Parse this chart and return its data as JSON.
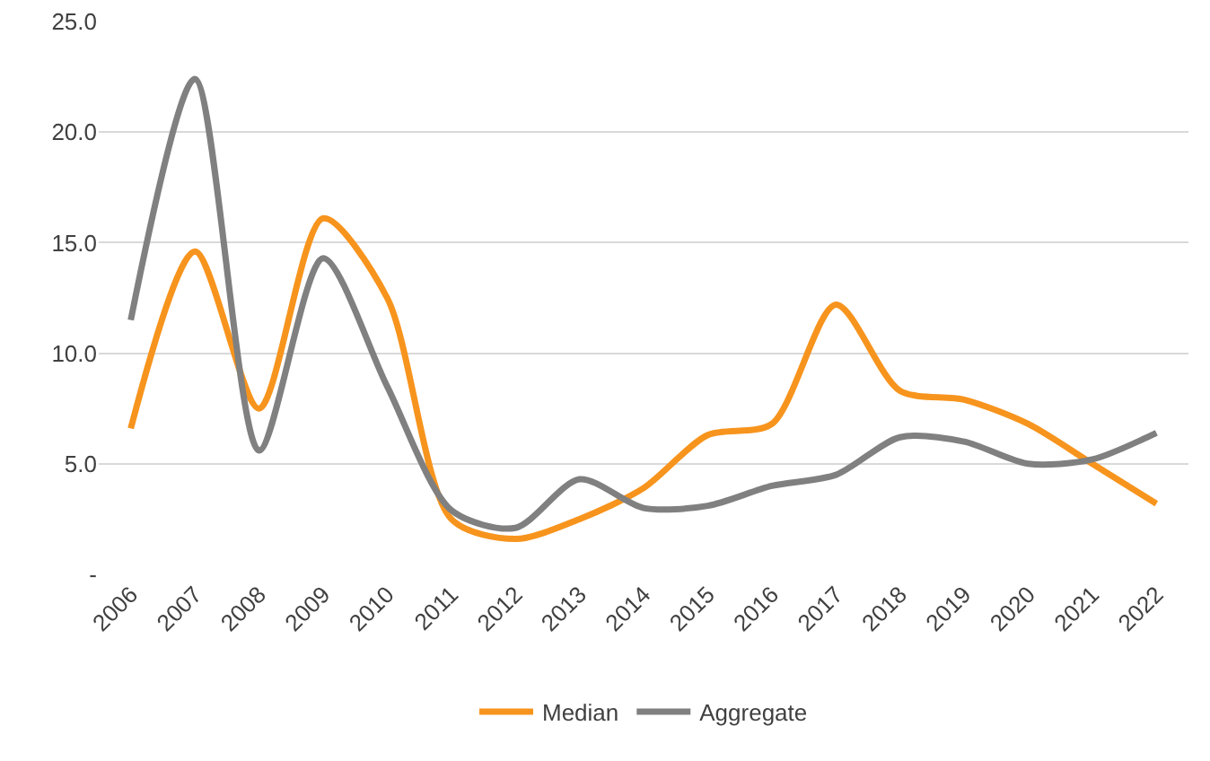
{
  "chart_data": {
    "type": "line",
    "categories": [
      "2006",
      "2007",
      "2008",
      "2009",
      "2010",
      "2011",
      "2012",
      "2013",
      "2014",
      "2015",
      "2016",
      "2017",
      "2018",
      "2019",
      "2020",
      "2021",
      "2022"
    ],
    "series": [
      {
        "name": "Median",
        "color": "#f7941d",
        "values": [
          6.6,
          14.6,
          7.5,
          16.1,
          12.5,
          2.5,
          1.6,
          2.5,
          3.9,
          6.3,
          6.8,
          12.2,
          8.3,
          7.9,
          6.8,
          5.0,
          3.2
        ]
      },
      {
        "name": "Aggregate",
        "color": "#808080",
        "values": [
          11.5,
          22.4,
          5.6,
          14.3,
          8.5,
          2.9,
          2.1,
          4.3,
          3.0,
          3.1,
          4.0,
          4.5,
          6.2,
          6.0,
          5.0,
          5.2,
          6.4
        ]
      }
    ],
    "ylim": [
      0,
      25
    ],
    "yticks": [
      {
        "value": 0,
        "label": "-"
      },
      {
        "value": 5,
        "label": "5.0"
      },
      {
        "value": 10,
        "label": "10.0"
      },
      {
        "value": 15,
        "label": "15.0"
      },
      {
        "value": 20,
        "label": "20.0"
      },
      {
        "value": 25,
        "label": "25.0"
      }
    ],
    "grid": "y",
    "legend": "bottom",
    "marker": "none",
    "line_style": "solid"
  }
}
